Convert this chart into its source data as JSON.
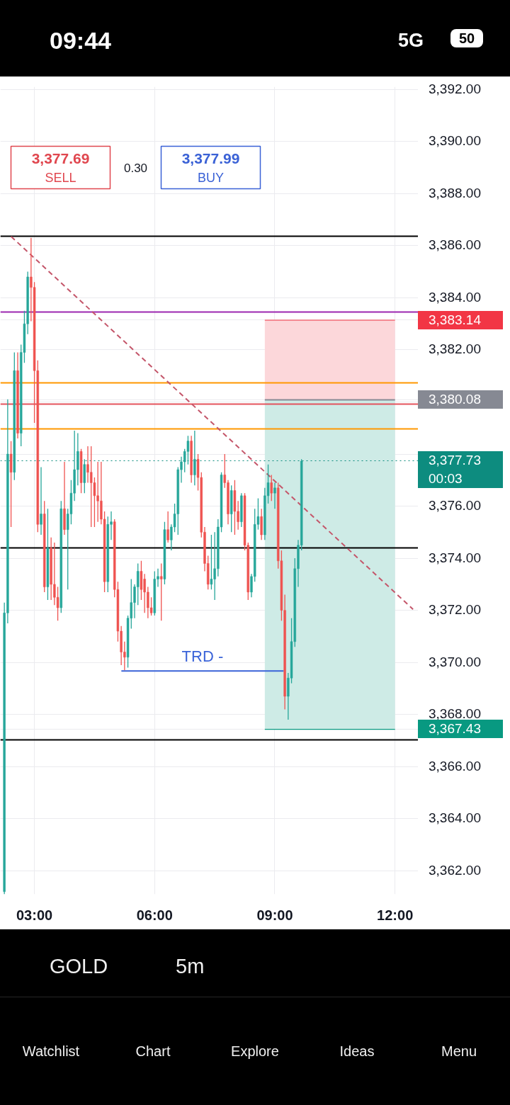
{
  "chart_data": {
    "type": "candlestick",
    "title": "GOLD",
    "subtitle": "5m",
    "x": [
      2.25,
      2.3333,
      2.4167,
      2.5,
      2.5833,
      2.6667,
      2.75,
      2.8333,
      2.9167,
      3.0,
      3.0833,
      3.1667,
      3.25,
      3.3333,
      3.4167,
      3.5,
      3.5833,
      3.6667,
      3.75,
      3.8333,
      3.9167,
      4.0,
      4.0833,
      4.1667,
      4.25,
      4.3333,
      4.4167,
      4.5,
      4.5833,
      4.6667,
      4.75,
      4.8333,
      4.9167,
      5.0,
      5.0833,
      5.1667,
      5.25,
      5.3333,
      5.4167,
      5.5,
      5.5833,
      5.6667,
      5.75,
      5.8333,
      5.9167,
      6.0,
      6.0833,
      6.1667,
      6.25,
      6.3333,
      6.4167,
      6.5,
      6.5833,
      6.6667,
      6.75,
      6.8333,
      6.9167,
      7.0,
      7.0833,
      7.1667,
      7.25,
      7.3333,
      7.4167,
      7.5,
      7.5833,
      7.6667,
      7.75,
      7.8333,
      7.9167,
      8.0,
      8.0833,
      8.1667,
      8.25,
      8.3333,
      8.4167,
      8.5,
      8.5833,
      8.6667,
      8.75,
      8.8333,
      8.9167,
      9.0,
      9.0833,
      9.1667,
      9.25,
      9.3333,
      9.4167,
      9.5,
      9.5833,
      9.6667
    ],
    "ohlc": [
      [
        3361.2,
        3372.3,
        3361.1,
        3371.9
      ],
      [
        3371.9,
        3380.1,
        3371.5,
        3378.0
      ],
      [
        3378.0,
        3378.5,
        3375.2,
        3377.3
      ],
      [
        3377.3,
        3381.9,
        3377.0,
        3381.2
      ],
      [
        3381.2,
        3381.9,
        3378.6,
        3378.8
      ],
      [
        3378.8,
        3382.2,
        3378.3,
        3381.9
      ],
      [
        3381.9,
        3383.5,
        3381.5,
        3383.0
      ],
      [
        3383.0,
        3385.0,
        3382.6,
        3384.8
      ],
      [
        3384.8,
        3386.3,
        3383.1,
        3384.4
      ],
      [
        3384.4,
        3384.6,
        3379.2,
        3381.2
      ],
      [
        3381.2,
        3381.6,
        3375.0,
        3375.3
      ],
      [
        3375.3,
        3377.5,
        3374.9,
        3375.7
      ],
      [
        3375.7,
        3376.2,
        3372.7,
        3372.9
      ],
      [
        3372.9,
        3375.9,
        3372.4,
        3374.4
      ],
      [
        3374.4,
        3374.8,
        3372.4,
        3373.0
      ],
      [
        3373.0,
        3374.6,
        3372.2,
        3372.5
      ],
      [
        3372.5,
        3372.9,
        3371.6,
        3372.1
      ],
      [
        3372.1,
        3376.2,
        3371.9,
        3375.9
      ],
      [
        3375.9,
        3377.7,
        3374.9,
        3375.1
      ],
      [
        3375.1,
        3375.9,
        3372.8,
        3375.7
      ],
      [
        3375.7,
        3377.0,
        3375.3,
        3376.5
      ],
      [
        3376.5,
        3378.9,
        3376.2,
        3377.4
      ],
      [
        3377.4,
        3378.8,
        3376.8,
        3378.1
      ],
      [
        3378.1,
        3378.2,
        3376.5,
        3376.9
      ],
      [
        3376.9,
        3377.8,
        3376.5,
        3377.6
      ],
      [
        3377.6,
        3378.3,
        3376.9,
        3377.3
      ],
      [
        3377.3,
        3378.3,
        3375.2,
        3376.9
      ],
      [
        3376.9,
        3377.1,
        3375.2,
        3376.4
      ],
      [
        3376.4,
        3377.7,
        3375.4,
        3376.2
      ],
      [
        3376.2,
        3377.7,
        3375.3,
        3375.5
      ],
      [
        3375.5,
        3375.8,
        3372.7,
        3373.1
      ],
      [
        3373.1,
        3375.6,
        3372.7,
        3375.3
      ],
      [
        3375.3,
        3375.8,
        3374.7,
        3375.4
      ],
      [
        3375.4,
        3375.5,
        3372.5,
        3372.8
      ],
      [
        3372.8,
        3373.1,
        3370.8,
        3371.2
      ],
      [
        3371.2,
        3371.4,
        3369.9,
        3370.4
      ],
      [
        3370.4,
        3370.8,
        3369.7,
        3370.2
      ],
      [
        3370.2,
        3371.8,
        3369.8,
        3371.7
      ],
      [
        3371.7,
        3373.2,
        3371.3,
        3372.3
      ],
      [
        3372.3,
        3373.0,
        3371.7,
        3372.9
      ],
      [
        3372.9,
        3373.8,
        3372.2,
        3373.5
      ],
      [
        3373.5,
        3373.9,
        3372.4,
        3372.8
      ],
      [
        3373.2,
        3373.4,
        3371.9,
        3372.7
      ],
      [
        3372.7,
        3372.9,
        3371.7,
        3372.1
      ],
      [
        3372.1,
        3372.5,
        3371.8,
        3371.9
      ],
      [
        3371.9,
        3373.5,
        3371.8,
        3373.2
      ],
      [
        3373.2,
        3373.6,
        3372.9,
        3373.3
      ],
      [
        3373.3,
        3373.8,
        3371.6,
        3373.2
      ],
      [
        3373.2,
        3375.4,
        3373.0,
        3375.1
      ],
      [
        3375.1,
        3375.8,
        3374.6,
        3374.7
      ],
      [
        3374.7,
        3375.3,
        3374.3,
        3375.2
      ],
      [
        3375.2,
        3376.1,
        3375.0,
        3375.7
      ],
      [
        3375.7,
        3377.5,
        3374.9,
        3377.4
      ],
      [
        3377.4,
        3377.9,
        3376.9,
        3377.7
      ],
      [
        3377.7,
        3378.2,
        3377.3,
        3378.1
      ],
      [
        3378.1,
        3378.7,
        3377.6,
        3378.5
      ],
      [
        3378.5,
        3378.7,
        3376.9,
        3377.2
      ],
      [
        3377.2,
        3378.9,
        3376.8,
        3377.8
      ],
      [
        3377.8,
        3378.0,
        3376.6,
        3377.1
      ],
      [
        3377.1,
        3377.3,
        3374.8,
        3375.0
      ],
      [
        3375.0,
        3375.2,
        3373.5,
        3373.8
      ],
      [
        3373.8,
        3374.1,
        3372.8,
        3373.0
      ],
      [
        3373.0,
        3374.9,
        3372.8,
        3373.2
      ],
      [
        3373.2,
        3375.0,
        3372.4,
        3373.6
      ],
      [
        3373.6,
        3375.5,
        3373.3,
        3375.2
      ],
      [
        3375.2,
        3377.3,
        3375.0,
        3377.2
      ],
      [
        3377.2,
        3378.0,
        3376.7,
        3376.9
      ],
      [
        3376.9,
        3377.0,
        3375.3,
        3375.7
      ],
      [
        3375.7,
        3376.8,
        3375.0,
        3376.6
      ],
      [
        3376.6,
        3377.0,
        3374.9,
        3375.8
      ],
      [
        3375.8,
        3376.2,
        3375.1,
        3375.4
      ],
      [
        3375.4,
        3376.5,
        3375.2,
        3376.4
      ],
      [
        3376.4,
        3376.5,
        3374.3,
        3374.5
      ],
      [
        3374.5,
        3374.6,
        3372.4,
        3372.7
      ],
      [
        3372.7,
        3373.4,
        3372.5,
        3373.3
      ],
      [
        3373.3,
        3375.9,
        3373.1,
        3375.3
      ],
      [
        3375.3,
        3376.3,
        3375.1,
        3375.6
      ],
      [
        3375.6,
        3375.9,
        3374.7,
        3374.9
      ],
      [
        3374.9,
        3376.7,
        3374.7,
        3376.4
      ],
      [
        3376.4,
        3377.6,
        3376.1,
        3376.9
      ],
      [
        3376.9,
        3377.2,
        3376.2,
        3376.5
      ],
      [
        3376.5,
        3376.9,
        3375.9,
        3376.7
      ],
      [
        3376.7,
        3376.9,
        3373.6,
        3373.9
      ],
      [
        3373.9,
        3374.3,
        3371.6,
        3372.0
      ],
      [
        3372.0,
        3372.6,
        3368.2,
        3368.7
      ],
      [
        3368.7,
        3369.6,
        3367.8,
        3369.4
      ],
      [
        3369.4,
        3371.7,
        3369.2,
        3370.8
      ],
      [
        3370.8,
        3374.0,
        3370.6,
        3373.6
      ],
      [
        3373.6,
        3374.7,
        3372.9,
        3374.5
      ],
      [
        3374.5,
        3377.8,
        3374.3,
        3377.73
      ]
    ],
    "colors": [
      "#26a69a",
      "#26a69a",
      "#ef5350",
      "#26a69a",
      "#ef5350",
      "#26a69a",
      "#26a69a",
      "#26a69a",
      "#ef5350",
      "#ef5350",
      "#ef5350",
      "#26a69a",
      "#ef5350",
      "#26a69a",
      "#ef5350",
      "#ef5350",
      "#ef5350",
      "#26a69a",
      "#ef5350",
      "#26a69a",
      "#26a69a",
      "#26a69a",
      "#26a69a",
      "#ef5350",
      "#26a69a",
      "#ef5350",
      "#ef5350",
      "#ef5350",
      "#ef5350",
      "#ef5350",
      "#ef5350",
      "#26a69a",
      "#26a69a",
      "#ef5350",
      "#ef5350",
      "#ef5350",
      "#ef5350",
      "#26a69a",
      "#26a69a",
      "#26a69a",
      "#26a69a",
      "#ef5350",
      "#ef5350",
      "#ef5350",
      "#ef5350",
      "#26a69a",
      "#26a69a",
      "#ef5350",
      "#26a69a",
      "#ef5350",
      "#26a69a",
      "#26a69a",
      "#26a69a",
      "#26a69a",
      "#26a69a",
      "#26a69a",
      "#ef5350",
      "#26a69a",
      "#ef5350",
      "#ef5350",
      "#ef5350",
      "#ef5350",
      "#26a69a",
      "#26a69a",
      "#26a69a",
      "#26a69a",
      "#ef5350",
      "#ef5350",
      "#26a69a",
      "#ef5350",
      "#ef5350",
      "#26a69a",
      "#ef5350",
      "#ef5350",
      "#26a69a",
      "#26a69a",
      "#26a69a",
      "#ef5350",
      "#26a69a",
      "#26a69a",
      "#ef5350",
      "#26a69a",
      "#ef5350",
      "#ef5350",
      "#ef5350",
      "#26a69a",
      "#26a69a",
      "#26a69a",
      "#26a69a",
      "#26a69a"
    ],
    "series": [
      {
        "type": "line",
        "x": [
          8.75,
          12.0
        ],
        "values": [
          3383.14,
          3383.14
        ],
        "lower": [
          3380.08,
          3380.08
        ],
        "upper": [
          3383.14,
          3383.14
        ],
        "color": "#f23645"
      },
      {
        "type": "line",
        "x": [
          8.75,
          12.0
        ],
        "values": [
          3367.43,
          3367.43
        ],
        "lower": [
          3367.43,
          3367.43
        ],
        "upper": [
          3380.08,
          3380.08
        ],
        "color": "#089981"
      },
      {
        "type": "line",
        "x": [
          8.75,
          12.0
        ],
        "values": [
          3380.08,
          3380.08
        ],
        "color": "#868993"
      },
      {
        "type": "line",
        "x": [
          2.42,
          12.45
        ],
        "values": [
          3386.35,
          3372.04
        ],
        "color": "#c4566a",
        "line_style": "dashed"
      },
      {
        "type": "line",
        "name": "TRD -",
        "x": [
          5.17,
          9.22
        ],
        "values": [
          3369.67,
          3369.67
        ],
        "color": "#3a63d8"
      }
    ],
    "ref_lines": [
      {
        "axis": "y",
        "value": 3386.35,
        "color": "#000000"
      },
      {
        "axis": "y",
        "value": 3383.44,
        "color": "#9c27b0"
      },
      {
        "axis": "y",
        "value": 3380.73,
        "color": "#ff9800"
      },
      {
        "axis": "y",
        "value": 3379.92,
        "color": "#e3535d"
      },
      {
        "axis": "y",
        "value": 3378.96,
        "color": "#ff9800"
      },
      {
        "axis": "y",
        "value": 3374.4,
        "color": "#000000"
      },
      {
        "axis": "y",
        "value": 3367.03,
        "color": "#000000"
      },
      {
        "axis": "y",
        "value": 3377.73,
        "color": "#0d8c7f",
        "line_style": "dotted",
        "label": "3,377.73"
      }
    ],
    "annotations": [
      "09:44",
      "5G",
      "50",
      "3,377.69",
      "SELL",
      "0.30",
      "3,377.99",
      "BUY",
      "00:03",
      "Watchlist",
      "Chart",
      "Explore",
      "Ideas",
      "Menu"
    ],
    "xlim": [
      2.15,
      12.58
    ],
    "ylim": [
      3361.1,
      3392.1
    ],
    "xticks": [
      {
        "value": 3,
        "label": "03:00"
      },
      {
        "value": 6,
        "label": "06:00"
      },
      {
        "value": 9,
        "label": "09:00"
      },
      {
        "value": 12,
        "label": "12:00"
      }
    ],
    "yticks": [
      {
        "value": 3362,
        "label": "3,362.00"
      },
      {
        "value": 3364,
        "label": "3,364.00"
      },
      {
        "value": 3366,
        "label": "3,366.00"
      },
      {
        "value": 3367.43,
        "label": "3,367.43"
      },
      {
        "value": 3368,
        "label": "3,368.00"
      },
      {
        "value": 3370,
        "label": "3,370.00"
      },
      {
        "value": 3372,
        "label": "3,372.00"
      },
      {
        "value": 3374,
        "label": "3,374.00"
      },
      {
        "value": 3376,
        "label": "3,376.00"
      },
      {
        "value": 3378,
        "label": null
      },
      {
        "value": 3380,
        "label": null
      },
      {
        "value": 3380.08,
        "label": "3,380.08"
      },
      {
        "value": 3382,
        "label": "3,382.00"
      },
      {
        "value": 3383.14,
        "label": "3,383.14"
      },
      {
        "value": 3384,
        "label": "3,384.00"
      },
      {
        "value": 3386,
        "label": "3,386.00"
      },
      {
        "value": 3388,
        "label": "3,388.00"
      },
      {
        "value": 3390,
        "label": "3,390.00"
      },
      {
        "value": 3392,
        "label": "3,392.00"
      }
    ],
    "grid": true
  }
}
